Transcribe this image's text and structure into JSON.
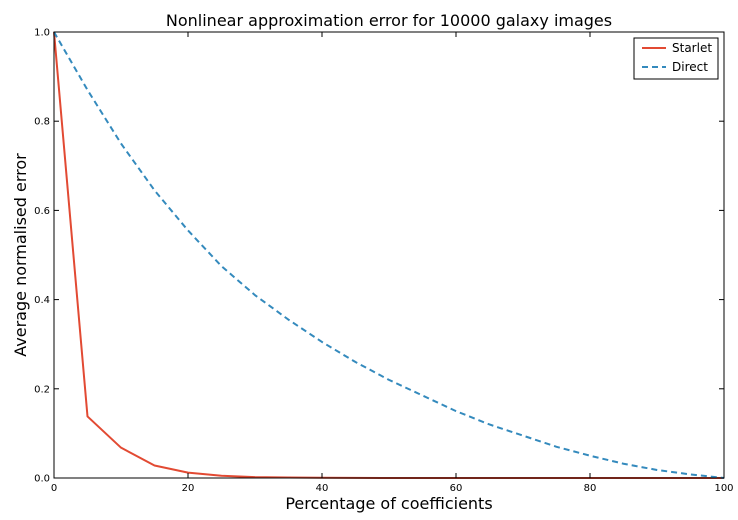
{
  "chart_data": {
    "type": "line",
    "title": "Nonlinear approximation error for 10000 galaxy images",
    "xlabel": "Percentage of coefficients",
    "ylabel": "Average normalised error",
    "xlim": [
      0,
      100
    ],
    "ylim": [
      0,
      1.0
    ],
    "xticks": [
      0,
      20,
      40,
      60,
      80,
      100
    ],
    "xtick_labels": [
      "0",
      "20",
      "40",
      "60",
      "80",
      "100"
    ],
    "yticks": [
      0,
      0.2,
      0.4,
      0.6,
      0.8,
      1.0
    ],
    "ytick_labels": [
      "0.0",
      "0.2",
      "0.4",
      "0.6",
      "0.8",
      "1.0"
    ],
    "grid": false,
    "legend_position": "top-right",
    "series": [
      {
        "name": "Starlet",
        "color": "#e24a33",
        "style": "solid",
        "x": [
          0,
          5,
          10,
          15,
          20,
          25,
          30,
          35,
          40,
          50,
          60,
          70,
          80,
          90,
          100
        ],
        "y": [
          1.0,
          0.138,
          0.068,
          0.028,
          0.012,
          0.005,
          0.002,
          0.001,
          0.0005,
          0.0,
          0.0,
          0.0,
          0.0,
          0.0,
          0.0
        ]
      },
      {
        "name": "Direct",
        "color": "#348abd",
        "style": "dashed",
        "x": [
          0,
          5,
          10,
          15,
          20,
          25,
          30,
          35,
          40,
          45,
          50,
          55,
          60,
          65,
          70,
          75,
          80,
          85,
          90,
          95,
          100
        ],
        "y": [
          1.0,
          0.87,
          0.75,
          0.645,
          0.555,
          0.475,
          0.41,
          0.355,
          0.305,
          0.26,
          0.22,
          0.185,
          0.15,
          0.12,
          0.095,
          0.07,
          0.05,
          0.032,
          0.018,
          0.008,
          0.0
        ]
      }
    ]
  }
}
